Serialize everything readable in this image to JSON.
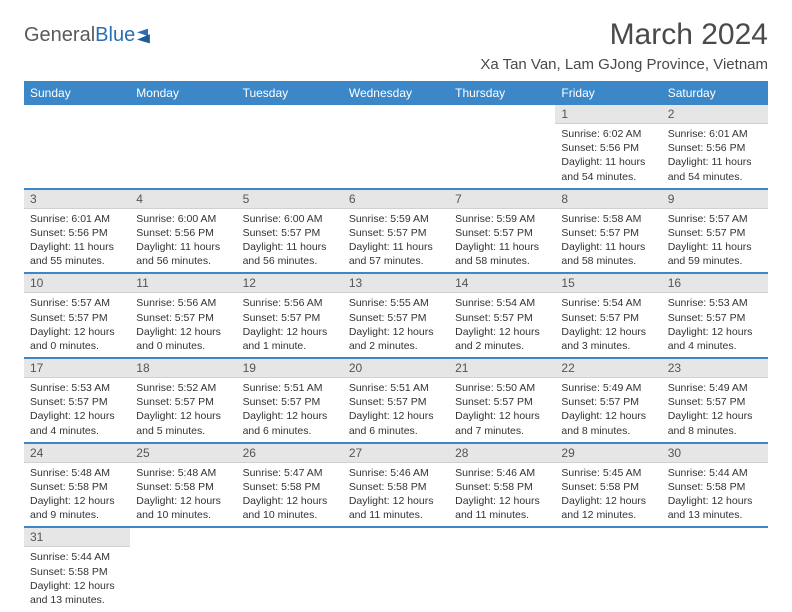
{
  "header": {
    "logo_general": "General",
    "logo_blue": "Blue",
    "month_title": "March 2024",
    "location": "Xa Tan Van, Lam GJong Province, Vietnam"
  },
  "colors": {
    "header_bg": "#3b87c8",
    "header_text": "#ffffff",
    "daynum_bg": "#e6e6e6",
    "row_border": "#3b87c8",
    "body_text": "#333333",
    "title_text": "#4a4a4a"
  },
  "weekdays": [
    "Sunday",
    "Monday",
    "Tuesday",
    "Wednesday",
    "Thursday",
    "Friday",
    "Saturday"
  ],
  "weeks": [
    [
      null,
      null,
      null,
      null,
      null,
      {
        "n": "1",
        "sunrise": "6:02 AM",
        "sunset": "5:56 PM",
        "daylight": "11 hours and 54 minutes."
      },
      {
        "n": "2",
        "sunrise": "6:01 AM",
        "sunset": "5:56 PM",
        "daylight": "11 hours and 54 minutes."
      }
    ],
    [
      {
        "n": "3",
        "sunrise": "6:01 AM",
        "sunset": "5:56 PM",
        "daylight": "11 hours and 55 minutes."
      },
      {
        "n": "4",
        "sunrise": "6:00 AM",
        "sunset": "5:56 PM",
        "daylight": "11 hours and 56 minutes."
      },
      {
        "n": "5",
        "sunrise": "6:00 AM",
        "sunset": "5:57 PM",
        "daylight": "11 hours and 56 minutes."
      },
      {
        "n": "6",
        "sunrise": "5:59 AM",
        "sunset": "5:57 PM",
        "daylight": "11 hours and 57 minutes."
      },
      {
        "n": "7",
        "sunrise": "5:59 AM",
        "sunset": "5:57 PM",
        "daylight": "11 hours and 58 minutes."
      },
      {
        "n": "8",
        "sunrise": "5:58 AM",
        "sunset": "5:57 PM",
        "daylight": "11 hours and 58 minutes."
      },
      {
        "n": "9",
        "sunrise": "5:57 AM",
        "sunset": "5:57 PM",
        "daylight": "11 hours and 59 minutes."
      }
    ],
    [
      {
        "n": "10",
        "sunrise": "5:57 AM",
        "sunset": "5:57 PM",
        "daylight": "12 hours and 0 minutes."
      },
      {
        "n": "11",
        "sunrise": "5:56 AM",
        "sunset": "5:57 PM",
        "daylight": "12 hours and 0 minutes."
      },
      {
        "n": "12",
        "sunrise": "5:56 AM",
        "sunset": "5:57 PM",
        "daylight": "12 hours and 1 minute."
      },
      {
        "n": "13",
        "sunrise": "5:55 AM",
        "sunset": "5:57 PM",
        "daylight": "12 hours and 2 minutes."
      },
      {
        "n": "14",
        "sunrise": "5:54 AM",
        "sunset": "5:57 PM",
        "daylight": "12 hours and 2 minutes."
      },
      {
        "n": "15",
        "sunrise": "5:54 AM",
        "sunset": "5:57 PM",
        "daylight": "12 hours and 3 minutes."
      },
      {
        "n": "16",
        "sunrise": "5:53 AM",
        "sunset": "5:57 PM",
        "daylight": "12 hours and 4 minutes."
      }
    ],
    [
      {
        "n": "17",
        "sunrise": "5:53 AM",
        "sunset": "5:57 PM",
        "daylight": "12 hours and 4 minutes."
      },
      {
        "n": "18",
        "sunrise": "5:52 AM",
        "sunset": "5:57 PM",
        "daylight": "12 hours and 5 minutes."
      },
      {
        "n": "19",
        "sunrise": "5:51 AM",
        "sunset": "5:57 PM",
        "daylight": "12 hours and 6 minutes."
      },
      {
        "n": "20",
        "sunrise": "5:51 AM",
        "sunset": "5:57 PM",
        "daylight": "12 hours and 6 minutes."
      },
      {
        "n": "21",
        "sunrise": "5:50 AM",
        "sunset": "5:57 PM",
        "daylight": "12 hours and 7 minutes."
      },
      {
        "n": "22",
        "sunrise": "5:49 AM",
        "sunset": "5:57 PM",
        "daylight": "12 hours and 8 minutes."
      },
      {
        "n": "23",
        "sunrise": "5:49 AM",
        "sunset": "5:57 PM",
        "daylight": "12 hours and 8 minutes."
      }
    ],
    [
      {
        "n": "24",
        "sunrise": "5:48 AM",
        "sunset": "5:58 PM",
        "daylight": "12 hours and 9 minutes."
      },
      {
        "n": "25",
        "sunrise": "5:48 AM",
        "sunset": "5:58 PM",
        "daylight": "12 hours and 10 minutes."
      },
      {
        "n": "26",
        "sunrise": "5:47 AM",
        "sunset": "5:58 PM",
        "daylight": "12 hours and 10 minutes."
      },
      {
        "n": "27",
        "sunrise": "5:46 AM",
        "sunset": "5:58 PM",
        "daylight": "12 hours and 11 minutes."
      },
      {
        "n": "28",
        "sunrise": "5:46 AM",
        "sunset": "5:58 PM",
        "daylight": "12 hours and 11 minutes."
      },
      {
        "n": "29",
        "sunrise": "5:45 AM",
        "sunset": "5:58 PM",
        "daylight": "12 hours and 12 minutes."
      },
      {
        "n": "30",
        "sunrise": "5:44 AM",
        "sunset": "5:58 PM",
        "daylight": "12 hours and 13 minutes."
      }
    ],
    [
      {
        "n": "31",
        "sunrise": "5:44 AM",
        "sunset": "5:58 PM",
        "daylight": "12 hours and 13 minutes."
      },
      null,
      null,
      null,
      null,
      null,
      null
    ]
  ],
  "labels": {
    "sunrise": "Sunrise: ",
    "sunset": "Sunset: ",
    "daylight": "Daylight: "
  }
}
